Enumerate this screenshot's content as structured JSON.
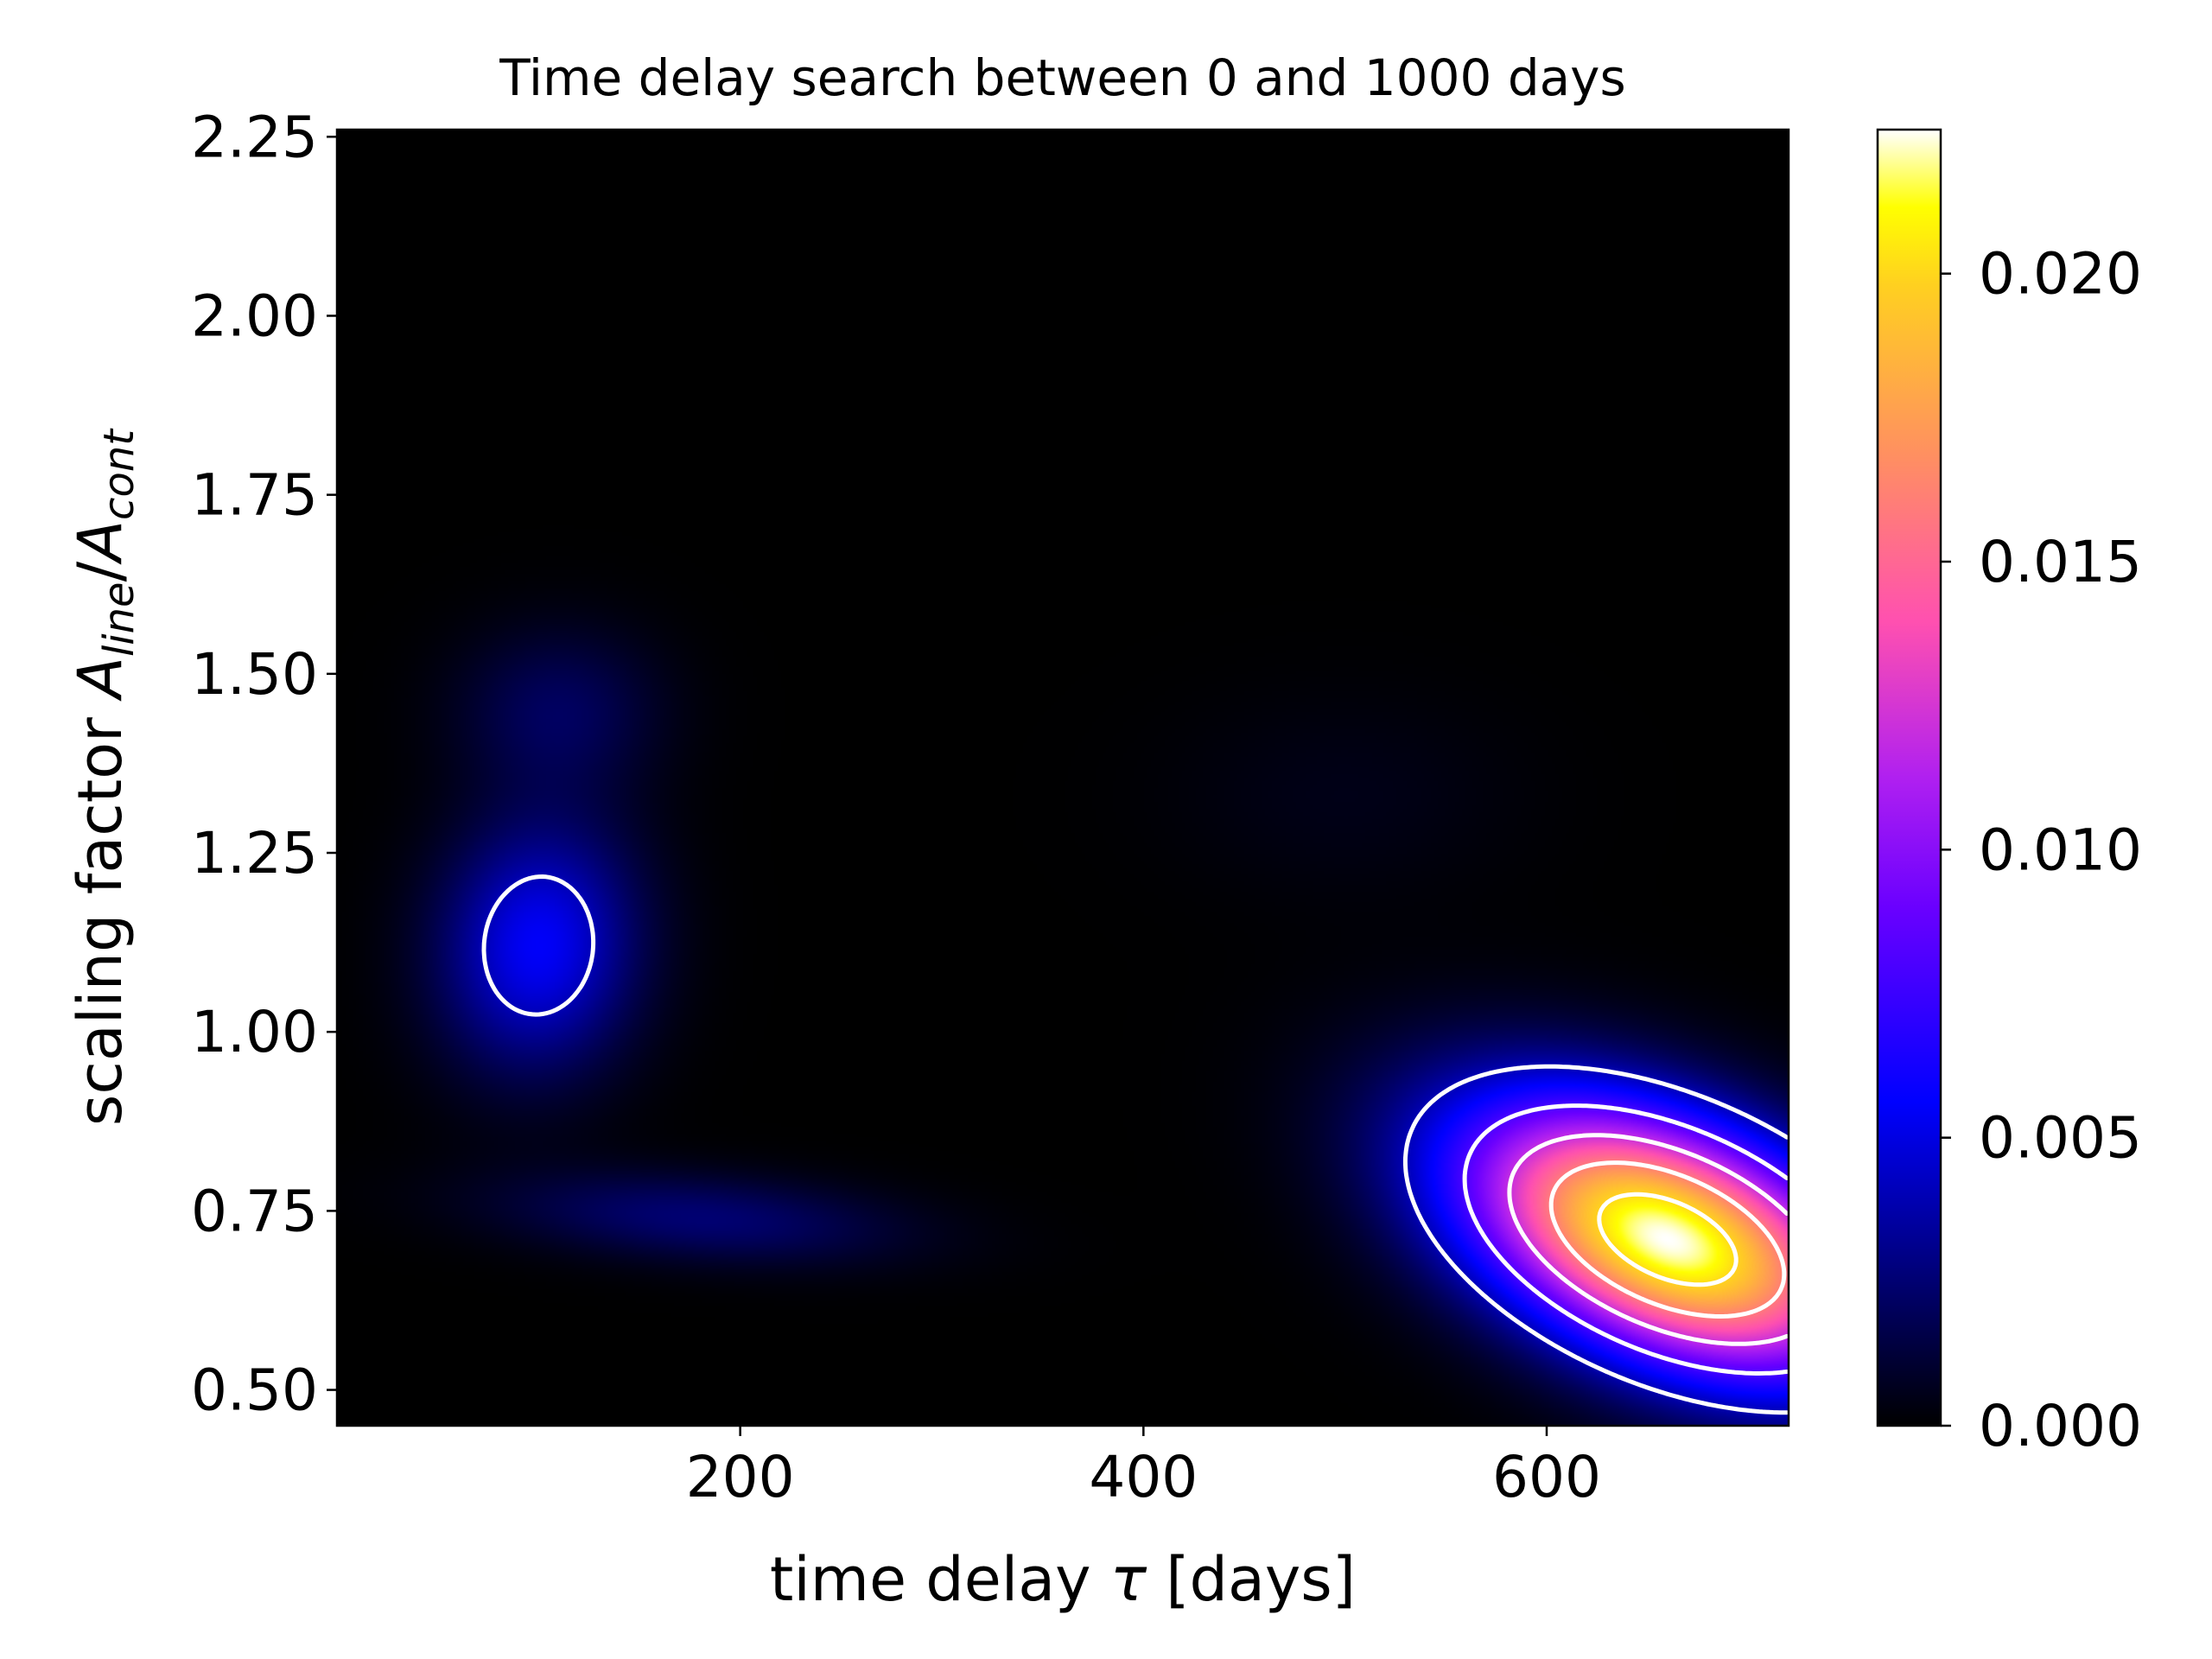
{
  "chart_data": {
    "type": "heatmap",
    "title": "Time delay search between 0 and 1000 days",
    "xlabel": "time delay  τ [days]",
    "xlabel_plain": "time delay  ",
    "xlabel_symbol": "τ",
    "xlabel_unit": " [days]",
    "ylabel_prefix": "scaling factor  ",
    "ylabel_A1": "A",
    "ylabel_sub1": "line",
    "ylabel_slash": "/",
    "ylabel_A2": "A",
    "ylabel_sub2": "cont",
    "xlim": [
      0,
      720
    ],
    "ylim": [
      0.45,
      2.26
    ],
    "x_ticks": [
      200,
      400,
      600
    ],
    "x_tick_labels": [
      "200",
      "400",
      "600"
    ],
    "y_ticks": [
      0.5,
      0.75,
      1.0,
      1.25,
      1.5,
      1.75,
      2.0,
      2.25
    ],
    "y_tick_labels": [
      "0.50",
      "0.75",
      "1.00",
      "1.25",
      "1.50",
      "1.75",
      "2.00",
      "2.25"
    ],
    "colormap": "gnuplot2",
    "colorbar": {
      "range": [
        0,
        0.0225
      ],
      "ticks": [
        0,
        0.005,
        0.01,
        0.015,
        0.02
      ],
      "tick_labels": [
        "0.000",
        "0.005",
        "0.010",
        "0.015",
        "0.020"
      ]
    },
    "peaks": [
      {
        "x": 660,
        "y": 0.71,
        "value": 0.0225
      },
      {
        "x": 100,
        "y": 1.12,
        "value": 0.0055
      },
      {
        "x": 180,
        "y": 0.74,
        "value": 0.0025
      },
      {
        "x": 110,
        "y": 1.45,
        "value": 0.002
      },
      {
        "x": 500,
        "y": 1.33,
        "value": 0.0005
      }
    ],
    "contour_levels": [
      0.004,
      0.008,
      0.012,
      0.016,
      0.02
    ],
    "contour_color": "#ffffff"
  }
}
